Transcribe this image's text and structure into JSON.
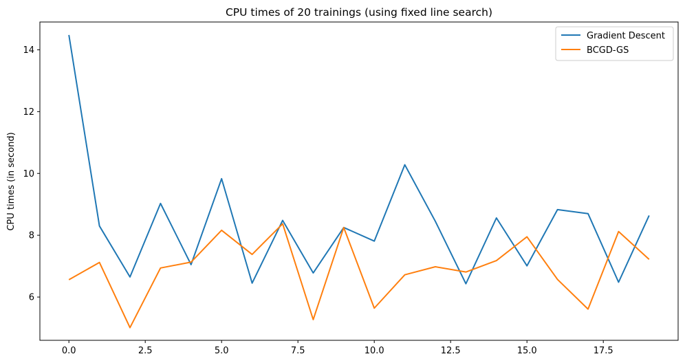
{
  "chart_data": {
    "type": "line",
    "title": "CPU times of 20 trainings (using fixed line search)",
    "xlabel": "",
    "ylabel": "CPU times (in second)",
    "xlim": [
      -0.95,
      19.95
    ],
    "ylim": [
      4.6,
      14.9
    ],
    "xticks": [
      0.0,
      2.5,
      5.0,
      7.5,
      10.0,
      12.5,
      15.0,
      17.5
    ],
    "xtick_labels": [
      "0.0",
      "2.5",
      "5.0",
      "7.5",
      "10.0",
      "12.5",
      "15.0",
      "17.5"
    ],
    "yticks": [
      6,
      8,
      10,
      12,
      14
    ],
    "ytick_labels": [
      "6",
      "8",
      "10",
      "12",
      "14"
    ],
    "grid": false,
    "legend_position": "top-right",
    "x": [
      0,
      1,
      2,
      3,
      4,
      5,
      6,
      7,
      8,
      9,
      10,
      11,
      12,
      13,
      14,
      15,
      16,
      17,
      18,
      19
    ],
    "series": [
      {
        "name": "Gradient Descent",
        "color": "#1f77b4",
        "values": [
          14.48,
          8.3,
          6.65,
          9.03,
          7.05,
          9.83,
          6.45,
          8.48,
          6.78,
          8.25,
          7.81,
          10.28,
          8.45,
          6.43,
          8.56,
          7.01,
          8.83,
          8.7,
          6.48,
          8.64
        ]
      },
      {
        "name": "BCGD-GS",
        "color": "#ff7f0e",
        "values": [
          6.56,
          7.12,
          5.01,
          6.94,
          7.13,
          8.16,
          7.38,
          8.37,
          5.27,
          8.25,
          5.64,
          6.72,
          6.98,
          6.81,
          7.18,
          7.95,
          6.57,
          5.61,
          8.12,
          7.22
        ]
      }
    ]
  }
}
